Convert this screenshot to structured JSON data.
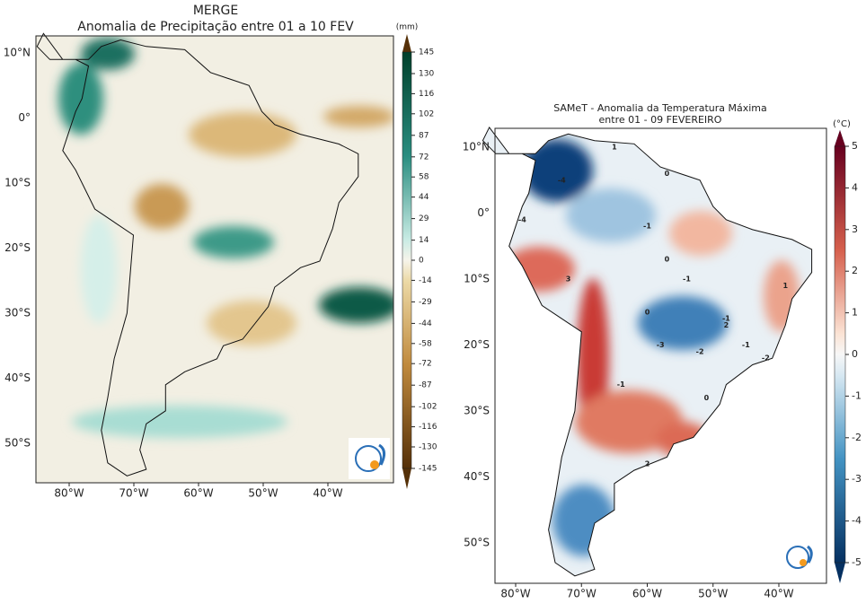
{
  "maps": [
    {
      "title": "MERGE",
      "subtitle": "Anomalia de Precipitação entre 01 a 10 FEV",
      "lon_ticks": [
        "80°W",
        "70°W",
        "60°W",
        "50°W",
        "40°W"
      ],
      "lat_ticks": [
        "10°N",
        "0°",
        "10°S",
        "20°S",
        "30°S",
        "40°S",
        "50°S"
      ],
      "colorbar": {
        "unit": "(mm)",
        "ticks": [
          145,
          130,
          116,
          102,
          87,
          72,
          58,
          44,
          29,
          14,
          0,
          -14,
          -29,
          -44,
          -58,
          -72,
          -87,
          -102,
          -116,
          -130,
          -145
        ]
      }
    },
    {
      "title": "SAMeT - Anomalia da Temperatura Máxima",
      "subtitle": "entre 01 - 09 FEVEREIRO",
      "lon_ticks": [
        "80°W",
        "70°W",
        "60°W",
        "50°W",
        "40°W"
      ],
      "lat_ticks": [
        "10°N",
        "0°",
        "10°S",
        "20°S",
        "30°S",
        "40°S",
        "50°S"
      ],
      "colorbar": {
        "unit": "(°C)",
        "ticks": [
          5,
          4,
          3,
          2,
          1,
          0,
          -1,
          -2,
          -3,
          -4,
          -5
        ]
      },
      "contour_labels": [
        "-4",
        "-4",
        "1",
        "0",
        "-1",
        "0",
        "-1",
        "3",
        "0",
        "-1",
        "-3",
        "-2",
        "-1",
        "2",
        "0",
        "-2",
        "2",
        "1",
        "-1"
      ]
    }
  ]
}
